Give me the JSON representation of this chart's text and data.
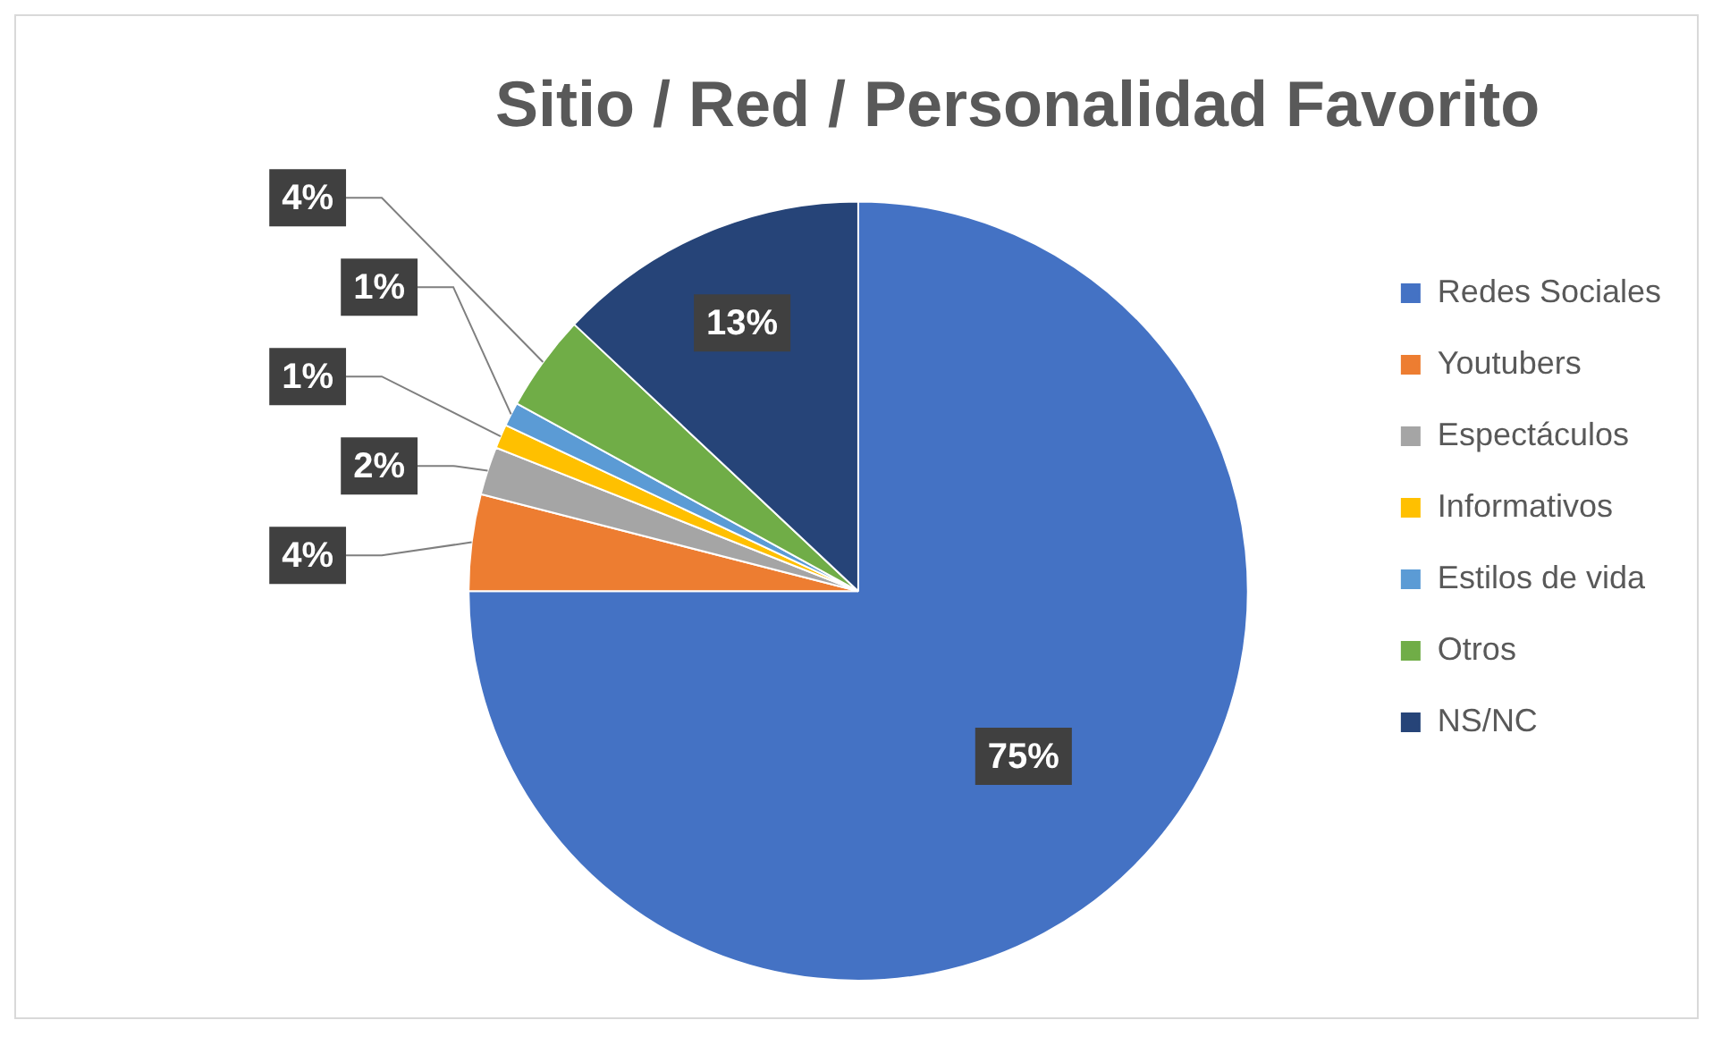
{
  "chart_data": {
    "type": "pie",
    "title": "Sitio / Red / Personalidad Favorito",
    "categories": [
      "Redes Sociales",
      "Youtubers",
      "Espectáculos",
      "Informativos",
      "Estilos de vida",
      "Otros",
      "NS/NC"
    ],
    "values": [
      75,
      4,
      2,
      1,
      1,
      4,
      13
    ],
    "colors": [
      "#4472c4",
      "#ed7d31",
      "#a5a5a5",
      "#ffc000",
      "#5b9bd5",
      "#70ad47",
      "#264478"
    ],
    "value_labels": [
      "75%",
      "4%",
      "2%",
      "1%",
      "1%",
      "4%",
      "13%"
    ],
    "legend": "right"
  }
}
